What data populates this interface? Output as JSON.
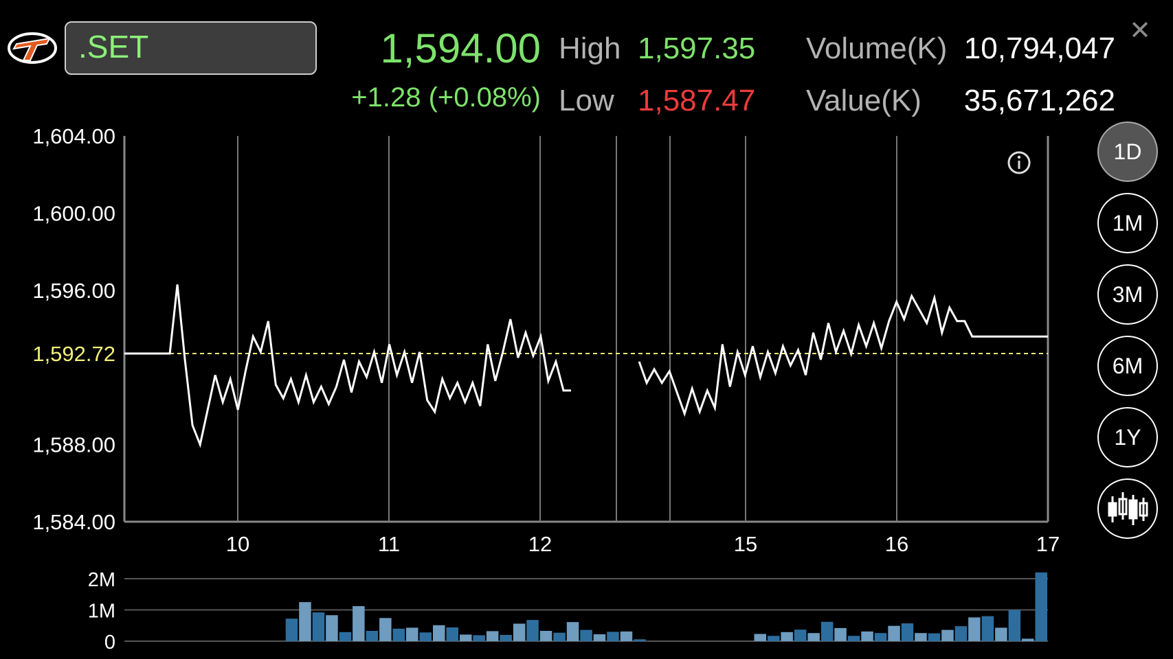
{
  "header": {
    "symbol": ".SET",
    "price": "1,594.00",
    "change": "+1.28 (+0.08%)",
    "high_label": "High",
    "high_value": "1,597.35",
    "low_label": "Low",
    "low_value": "1,587.47",
    "volume_label": "Volume(K)",
    "volume_value": "10,794,047",
    "value_label": "Value(K)",
    "value_value": "35,671,262",
    "close_icon": "close-icon",
    "logo_icon": "app-logo-icon"
  },
  "period_buttons": [
    {
      "label": "1D",
      "active": true
    },
    {
      "label": "1M",
      "active": false
    },
    {
      "label": "3M",
      "active": false
    },
    {
      "label": "6M",
      "active": false
    },
    {
      "label": "1Y",
      "active": false
    }
  ],
  "chart_toggle_icon": "candlestick-icon",
  "info_icon": "info-icon",
  "colors": {
    "up": "#7ee26b",
    "down": "#ee3b3b",
    "reference": "#f2f07a",
    "line": "#ffffff",
    "volume_bar_dark": "#2e6e9e",
    "volume_bar_light": "#6f9cbf"
  },
  "chart_data": [
    {
      "type": "line",
      "title": "",
      "ylim": [
        1584,
        1604
      ],
      "yticks": [
        "1,604.00",
        "1,600.00",
        "1,596.00",
        "1,588.00",
        "1,584.00"
      ],
      "ytick_values": [
        1604,
        1600,
        1596,
        1588,
        1584
      ],
      "reference_label": "1,592.72",
      "reference_value": 1592.72,
      "xtick_labels": [
        "10",
        "11",
        "12",
        "15",
        "16",
        "17"
      ],
      "grid_vertical": true,
      "series": [
        {
          "values": [
            1592.72,
            1592.72,
            1592.72,
            1592.72,
            1592.72,
            1592.72,
            1592.72,
            1596.3,
            1592.4,
            1589.0,
            1588.0,
            1589.8,
            1591.6,
            1590.2,
            1591.4,
            1589.8,
            1591.8,
            1593.6,
            1592.8,
            1594.4,
            1591.1,
            1590.4,
            1591.4,
            1590.2,
            1591.6,
            1590.2,
            1591.0,
            1590.1,
            1591.0,
            1592.4,
            1590.7,
            1592.3,
            1591.5,
            1592.8,
            1591.2,
            1593.2,
            1591.6,
            1592.8,
            1591.2,
            1592.8,
            1590.3,
            1589.7,
            1591.4,
            1590.4,
            1591.2,
            1590.2,
            1591.2,
            1590.0,
            1593.2,
            1591.3,
            1592.8,
            1594.5,
            1592.5,
            1593.8,
            1592.6,
            1593.6,
            1591.3,
            1592.3,
            1590.8,
            1590.8,
            null,
            null,
            null,
            null,
            null,
            null,
            null,
            null,
            1592.3,
            1591.2,
            1591.9,
            1591.2,
            1591.8,
            1590.7,
            1589.6,
            1590.9,
            1589.7,
            1590.8,
            1589.9,
            1593.2,
            1591.0,
            1592.8,
            1591.6,
            1593.1,
            1591.5,
            1592.8,
            1591.7,
            1593.1,
            1592.1,
            1592.9,
            1591.6,
            1593.8,
            1592.4,
            1594.3,
            1592.8,
            1593.9,
            1592.7,
            1594.2,
            1593.1,
            1594.3,
            1593.0,
            1594.4,
            1595.4,
            1594.5,
            1595.7,
            1595.0,
            1594.3,
            1595.6,
            1593.8,
            1595.1,
            1594.4,
            1594.4,
            1593.6,
            1593.6,
            1593.6,
            1593.6,
            1593.6,
            1593.6,
            1593.6,
            1593.6,
            1593.6,
            1593.6,
            1593.6
          ]
        }
      ]
    },
    {
      "type": "bar",
      "title": "",
      "ylim": [
        0,
        2000000
      ],
      "yticks": [
        "2M",
        "1M",
        "0"
      ],
      "ytick_values": [
        2000000,
        1000000,
        0
      ],
      "series": [
        {
          "values": [
            null,
            null,
            null,
            null,
            null,
            null,
            null,
            null,
            null,
            null,
            null,
            null,
            720000,
            1250000,
            920000,
            830000,
            290000,
            1120000,
            330000,
            740000,
            400000,
            430000,
            280000,
            510000,
            440000,
            210000,
            190000,
            320000,
            200000,
            560000,
            680000,
            330000,
            270000,
            610000,
            360000,
            220000,
            300000,
            310000,
            60000,
            null,
            null,
            null,
            null,
            null,
            null,
            null,
            null,
            230000,
            170000,
            290000,
            370000,
            260000,
            620000,
            420000,
            170000,
            310000,
            260000,
            490000,
            570000,
            260000,
            250000,
            360000,
            480000,
            760000,
            800000,
            430000,
            1000000,
            80000,
            2200000
          ]
        }
      ]
    }
  ]
}
